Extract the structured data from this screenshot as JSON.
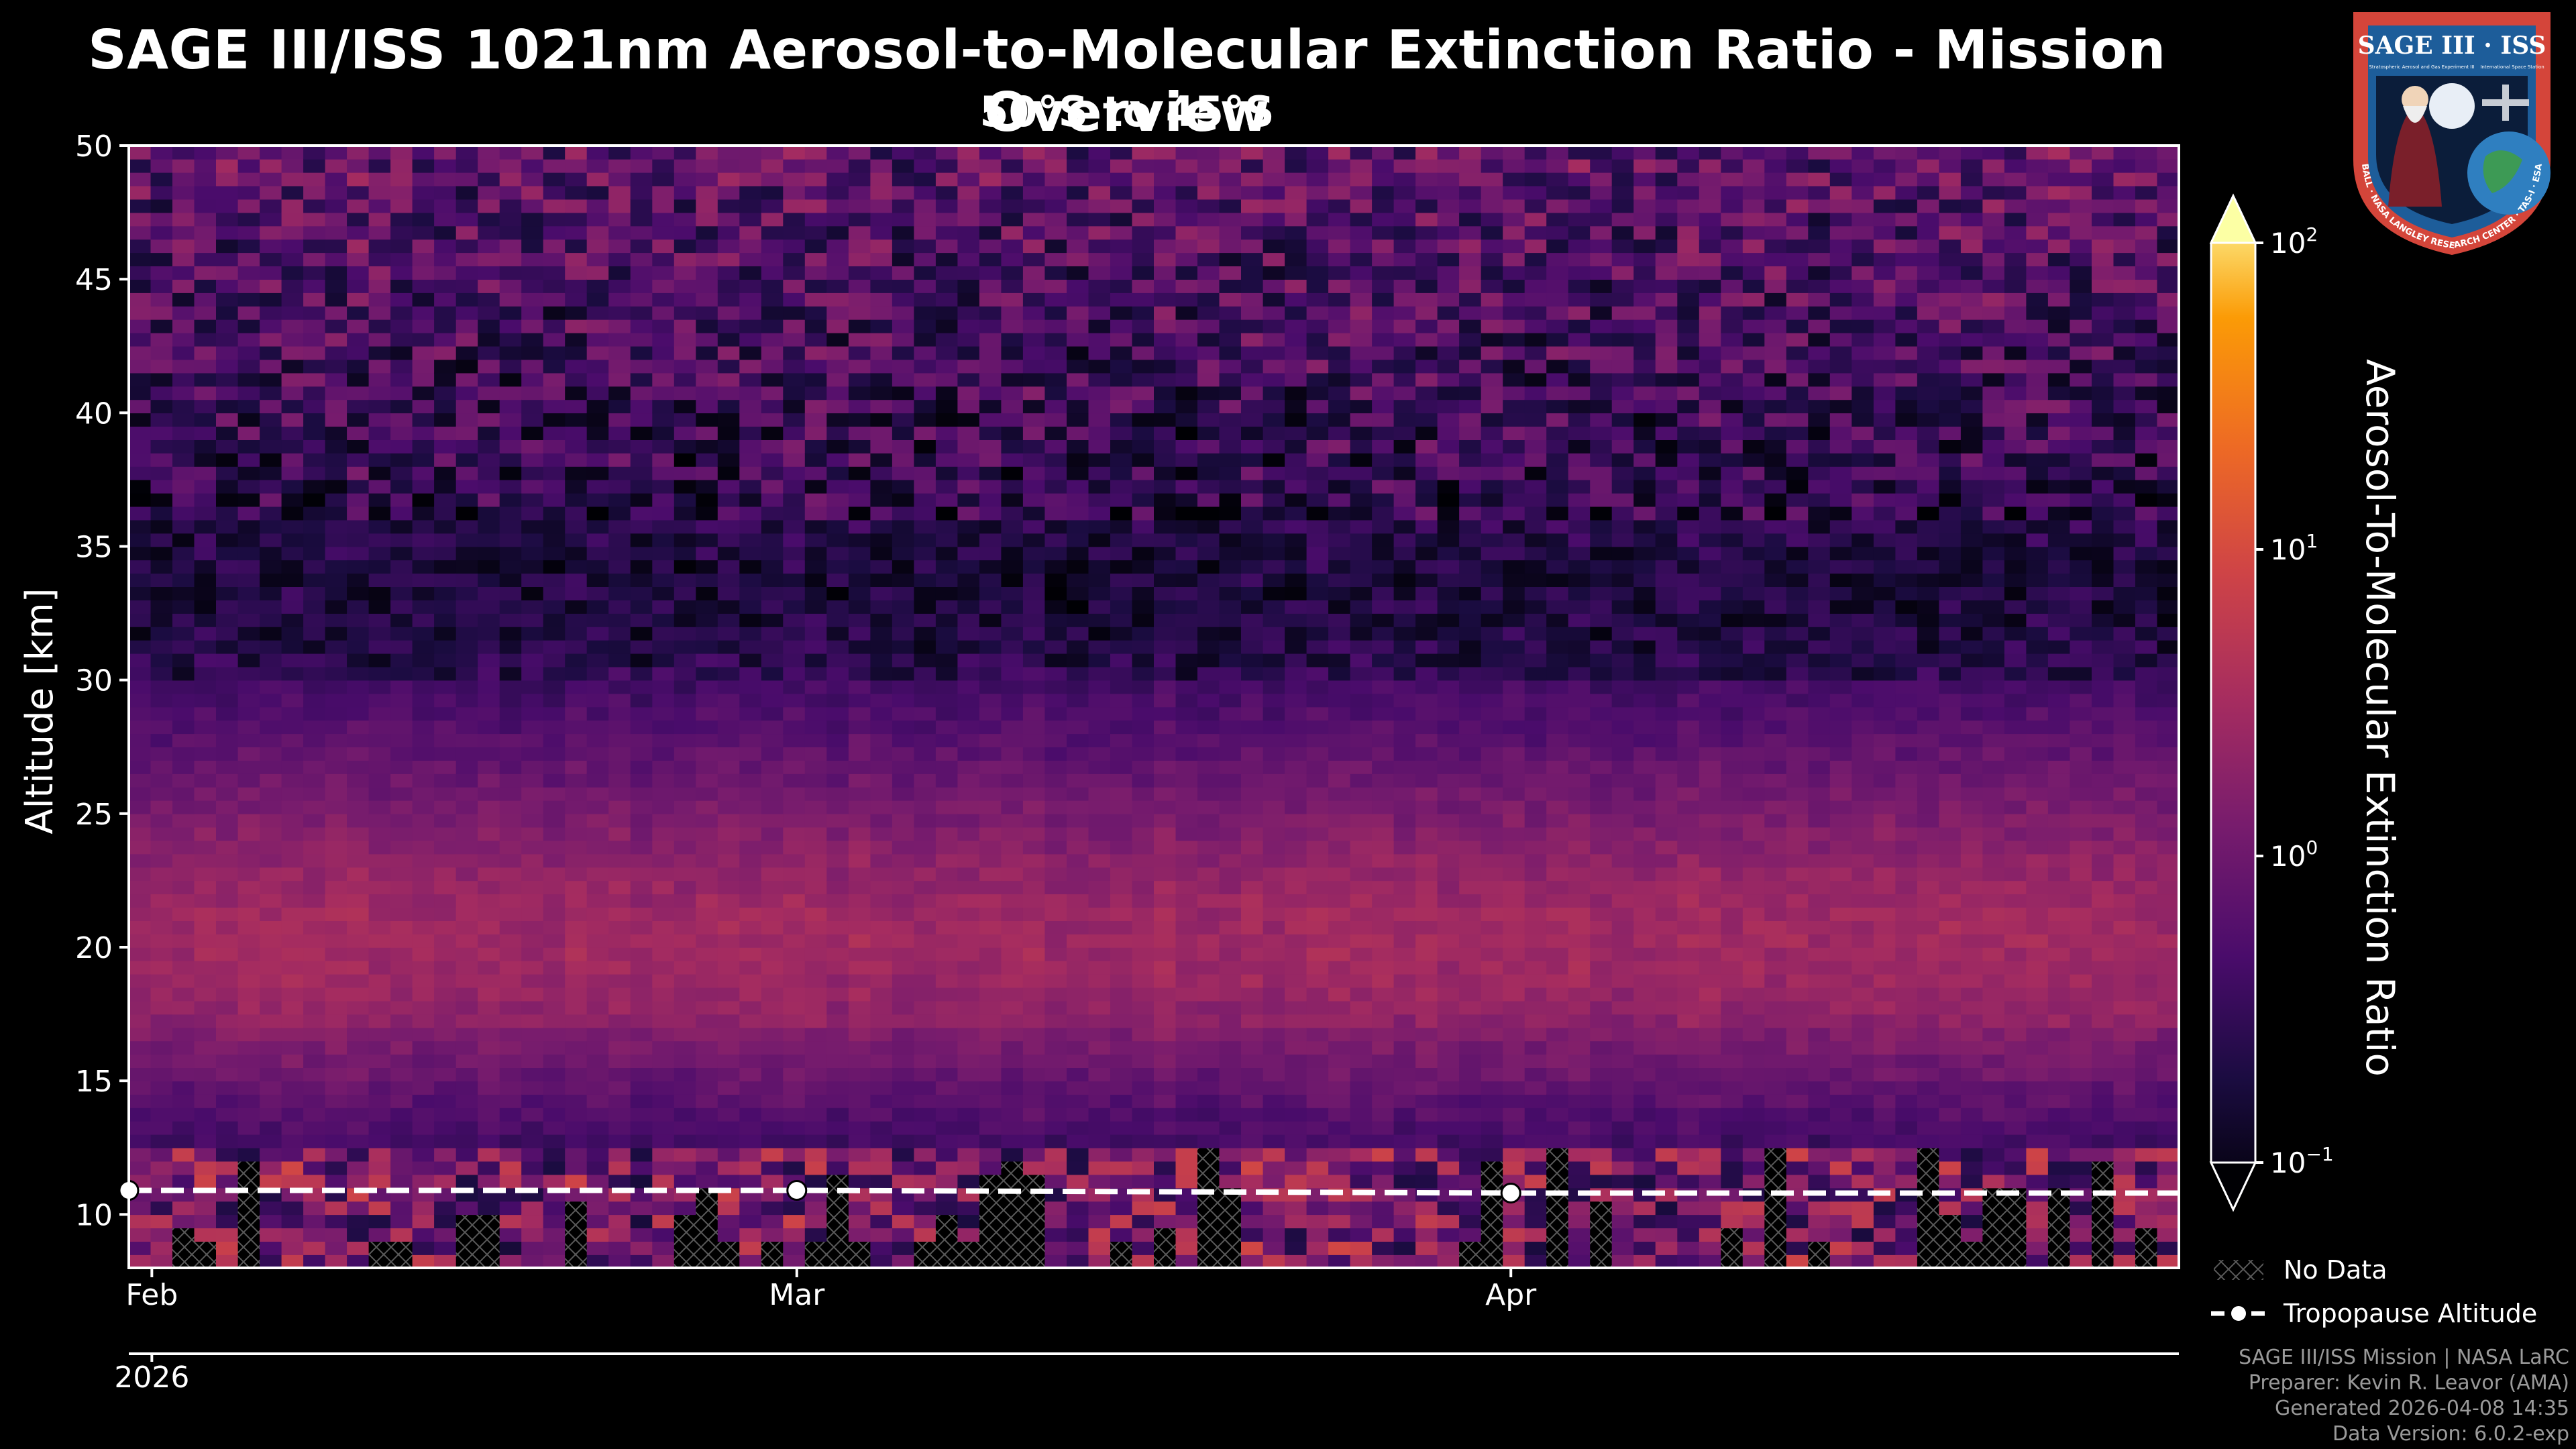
{
  "header": {
    "title": "SAGE III/ISS 1021nm Aerosol-to-Molecular Extinction Ratio - Mission Overview",
    "subtitle": "50°S to 45°S"
  },
  "chart_data": {
    "type": "heatmap",
    "title": "SAGE III/ISS 1021nm Aerosol-to-Molecular Extinction Ratio - Mission Overview",
    "subtitle": "50°S to 45°S",
    "ylabel": "Altitude [km]",
    "ylim": [
      8,
      50
    ],
    "yticks": [
      10,
      15,
      20,
      25,
      30,
      35,
      40,
      45,
      50
    ],
    "x_start": "2026-01-31",
    "x_end": "2026-04-30",
    "xticks": [
      {
        "date": "2026-02-01",
        "label": "Feb"
      },
      {
        "date": "2026-03-01",
        "label": "Mar"
      },
      {
        "date": "2026-04-01",
        "label": "Apr"
      }
    ],
    "x_year_label": "2026",
    "colorbar": {
      "label": "Aerosol-To-Molecular Extinction Ratio",
      "scale": "log",
      "range": [
        0.1,
        100
      ],
      "ticks": [
        "10",
        "10",
        "10",
        "10"
      ],
      "tick_exponents": [
        "−1",
        "0",
        "1",
        "2"
      ],
      "colormap": "inferno",
      "extend": "both"
    },
    "profile_summary": [
      {
        "altitude_range": "8-13 km",
        "typical_ratio": "0.5-100 (irregular, many no-data gaps)"
      },
      {
        "altitude_range": "13-17 km",
        "typical_ratio": "0.6-2"
      },
      {
        "altitude_range": "17-23 km",
        "typical_ratio": "2-4 (peak aerosol layer)"
      },
      {
        "altitude_range": "23-30 km",
        "typical_ratio": "0.5-2"
      },
      {
        "altitude_range": "30-36 km",
        "typical_ratio": "0.1-0.4 (minimum)"
      },
      {
        "altitude_range": "36-50 km",
        "typical_ratio": "0.1-10 (noisy)"
      }
    ],
    "tropopause": [
      {
        "date": "2026-01-31",
        "altitude_km": 10.9
      },
      {
        "date": "2026-03-01",
        "altitude_km": 10.9
      },
      {
        "date": "2026-04-01",
        "altitude_km": 10.8
      },
      {
        "date": "2026-04-30",
        "altitude_km": 10.8
      }
    ],
    "legend": [
      {
        "name": "No Data",
        "style": "hatched"
      },
      {
        "name": "Tropopause Altitude",
        "style": "dashed line with markers"
      }
    ],
    "legend_position": "below colorbar"
  },
  "footer": {
    "line1": "SAGE III/ISS Mission | NASA LaRC",
    "line2": "Preparer: Kevin R. Leavor (AMA)",
    "line3": "Generated 2026-04-08 14:35",
    "line4": "Data Version: 6.0.2-exp"
  },
  "logo": {
    "top_text": "SAGE III · ISS",
    "small_text_left": "Stratospheric Aerosol and Gas Experiment III",
    "small_text_right": "International Space Station",
    "ring_text": "BALL · NASA LANGLEY RESEARCH CENTER · TAS-I · ESA",
    "colors": {
      "ring": "#d4453a",
      "inner": "#1d5d9a"
    }
  },
  "colors": {
    "background": "#000000",
    "axes": "#ffffff",
    "tropopause": "#ffffff"
  }
}
